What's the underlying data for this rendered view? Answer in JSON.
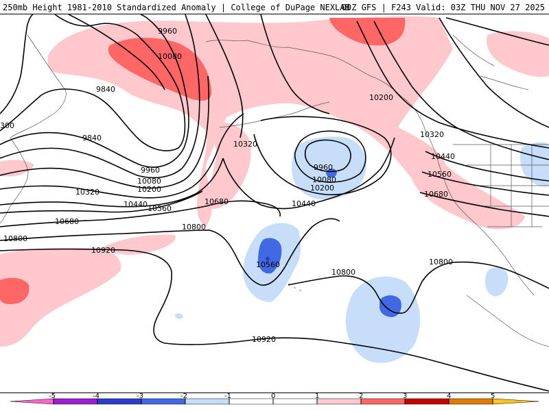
{
  "header": {
    "title_left": "250mb Height 1981-2010 Standardized Anomaly | College of DuPage NEXLAB",
    "title_right": "00Z GFS | F243 Valid: 03Z THU NOV 27 2025"
  },
  "colors": {
    "anom_neg4": "#9a1fd0",
    "anom_neg3": "#2a3fc9",
    "anom_neg2": "#4169e1",
    "anom_neg1": "#c6defa",
    "anom_0": "#ffffff",
    "anom_pos1": "#ffc8cd",
    "anom_pos2": "#ff6666",
    "anom_pos3": "#c40000",
    "anom_pos4": "#e07a00",
    "anom_pos5": "#ffc51a",
    "contour": "#000000",
    "coast": "#555555"
  },
  "contour_labels": [
    "9960",
    "10080",
    "9840",
    "9840",
    "9960",
    "10080",
    "10200",
    "10320",
    "10440",
    "10560",
    "10680",
    "10800",
    "10920",
    "10320",
    "10680",
    "10800",
    "9960",
    "10080",
    "10200",
    "10440",
    "10560",
    "10800",
    "10920",
    "10200",
    "10320",
    "10440",
    "10560",
    "10680",
    "10800",
    "300"
  ],
  "colorbar": {
    "ticks": [
      "-5",
      "-4",
      "-3",
      "-2",
      "-1",
      "0",
      "1",
      "2",
      "3",
      "4",
      "5"
    ]
  }
}
